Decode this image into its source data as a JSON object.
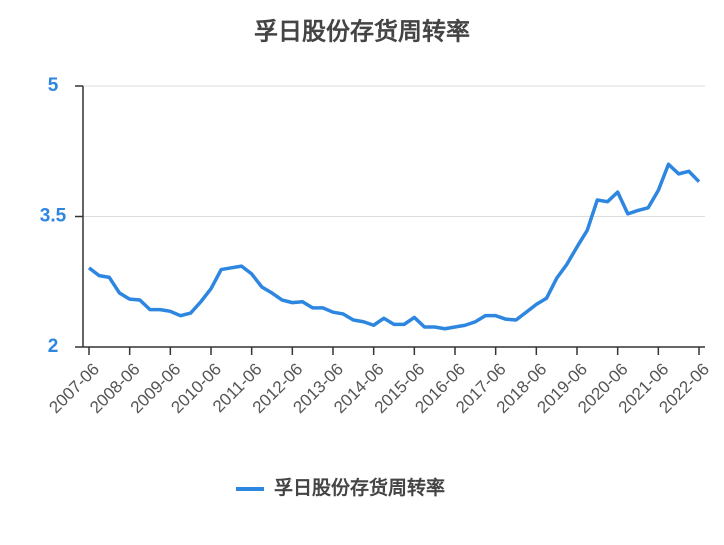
{
  "chart_data": {
    "type": "line",
    "title": "孚日股份存货周转率",
    "categories": [
      "2007-06",
      null,
      null,
      null,
      "2008-06",
      null,
      null,
      null,
      "2009-06",
      null,
      null,
      null,
      "2010-06",
      null,
      null,
      null,
      "2011-06",
      null,
      null,
      null,
      "2012-06",
      null,
      null,
      null,
      "2013-06",
      null,
      null,
      null,
      "2014-06",
      null,
      null,
      null,
      "2015-06",
      null,
      null,
      null,
      "2016-06",
      null,
      null,
      null,
      "2017-06",
      null,
      null,
      null,
      "2018-06",
      null,
      null,
      null,
      "2019-06",
      null,
      null,
      null,
      "2020-06",
      null,
      null,
      null,
      "2021-06",
      null,
      null,
      null,
      "2022-06"
    ],
    "series": [
      {
        "name": "孚日股份存货周转率",
        "color": "#2d86e0",
        "values": [
          2.91,
          2.82,
          2.8,
          2.62,
          2.55,
          2.54,
          2.43,
          2.43,
          2.41,
          2.36,
          2.39,
          2.52,
          2.67,
          2.89,
          2.91,
          2.93,
          2.84,
          2.69,
          2.62,
          2.54,
          2.51,
          2.52,
          2.45,
          2.45,
          2.4,
          2.38,
          2.31,
          2.29,
          2.25,
          2.33,
          2.26,
          2.26,
          2.34,
          2.23,
          2.23,
          2.21,
          2.23,
          2.25,
          2.29,
          2.36,
          2.36,
          2.32,
          2.31,
          2.4,
          2.49,
          2.56,
          2.79,
          2.95,
          3.15,
          3.34,
          3.69,
          3.67,
          3.78,
          3.53,
          3.57,
          3.6,
          3.8,
          4.1,
          3.99,
          4.02,
          3.9
        ]
      }
    ],
    "ylim": [
      2,
      5
    ],
    "yticks": [
      2,
      3.5,
      5
    ],
    "grid": true,
    "legend": "bottom"
  }
}
